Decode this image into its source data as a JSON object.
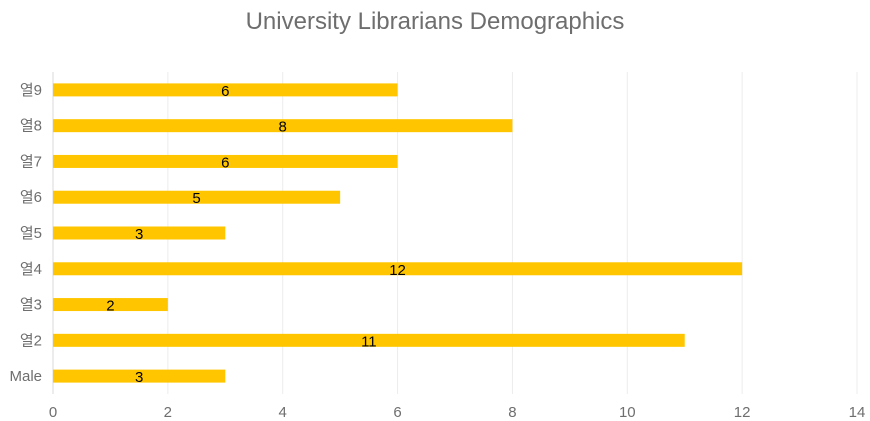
{
  "chart_data": {
    "type": "bar",
    "orientation": "horizontal",
    "title": "University Librarians Demographics",
    "categories": [
      "Male",
      "열2",
      "열3",
      "열4",
      "열5",
      "열6",
      "열7",
      "열8",
      "열9"
    ],
    "values": [
      3,
      11,
      2,
      12,
      3,
      5,
      6,
      8,
      6
    ],
    "xlim": [
      0,
      14
    ],
    "x_ticks": [
      0,
      2,
      4,
      6,
      8,
      10,
      12,
      14
    ],
    "grid": true,
    "legend": "none",
    "bar_color": "#ffc600",
    "data_labels": true
  }
}
